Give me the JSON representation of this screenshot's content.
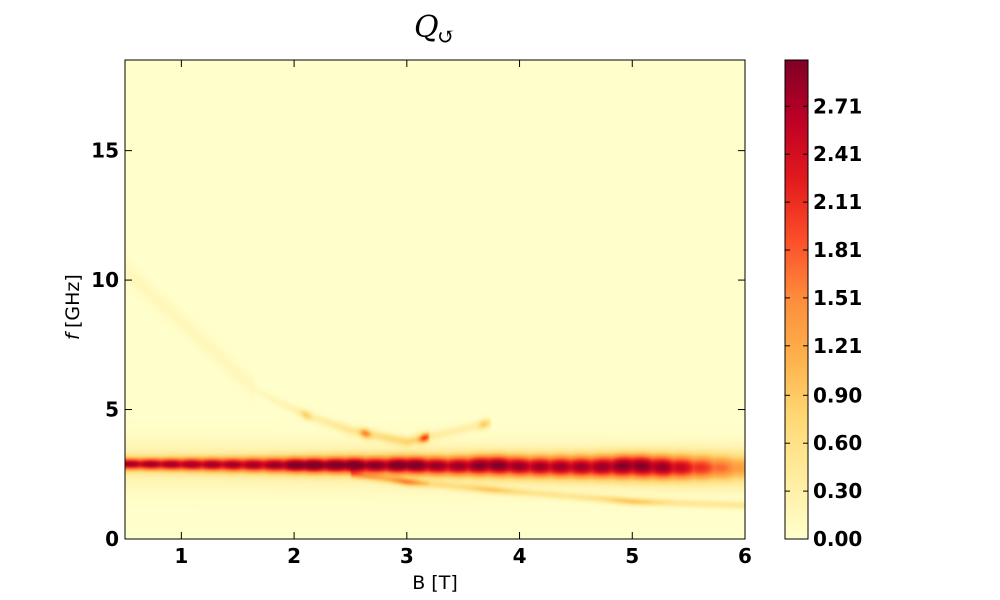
{
  "chart_data": {
    "type": "heatmap",
    "title": "Q",
    "title_subscript": "↺",
    "xlabel": "B [T]",
    "ylabel_symbol": "f",
    "ylabel_unit": "[GHz]",
    "xlim": [
      0.5,
      6
    ],
    "ylim": [
      0,
      18.5
    ],
    "xticks": [
      1,
      2,
      3,
      4,
      5,
      6
    ],
    "yticks": [
      0,
      5,
      10,
      15
    ],
    "colormap": "YlOrRd",
    "colorbar": {
      "range": [
        0,
        3.0
      ],
      "ticks": [
        "0.00",
        "0.30",
        "0.60",
        "0.90",
        "1.21",
        "1.51",
        "1.81",
        "2.11",
        "2.41",
        "2.71"
      ],
      "colors": [
        "#ffffcc",
        "#ffeda0",
        "#fed976",
        "#feb24c",
        "#fd8d3c",
        "#fc4e2a",
        "#e31a1c",
        "#bd0026",
        "#800026"
      ]
    },
    "features": [
      {
        "name": "main-band",
        "x_range": [
          0.5,
          6.0
        ],
        "f_start": 2.9,
        "f_end": 2.75,
        "peak_value": 2.5
      },
      {
        "name": "upper-branch",
        "points": [
          [
            1.65,
            5.8
          ],
          [
            1.85,
            5.3
          ],
          [
            2.1,
            4.8
          ],
          [
            2.5,
            4.2
          ],
          [
            3.0,
            3.75
          ],
          [
            3.75,
            4.5
          ]
        ],
        "peak_value": 1.9
      },
      {
        "name": "lower-branch",
        "points": [
          [
            2.5,
            2.5
          ],
          [
            3.0,
            2.2
          ],
          [
            3.75,
            1.9
          ],
          [
            5.0,
            1.45
          ],
          [
            6.0,
            1.3
          ]
        ],
        "peak_value": 1.3
      },
      {
        "name": "hot-spots",
        "points": [
          [
            2.1,
            2.85
          ],
          [
            2.5,
            2.9
          ],
          [
            3.0,
            2.95
          ],
          [
            3.75,
            3.05
          ],
          [
            5.0,
            3.05
          ]
        ],
        "peak_value": 2.9
      }
    ]
  }
}
